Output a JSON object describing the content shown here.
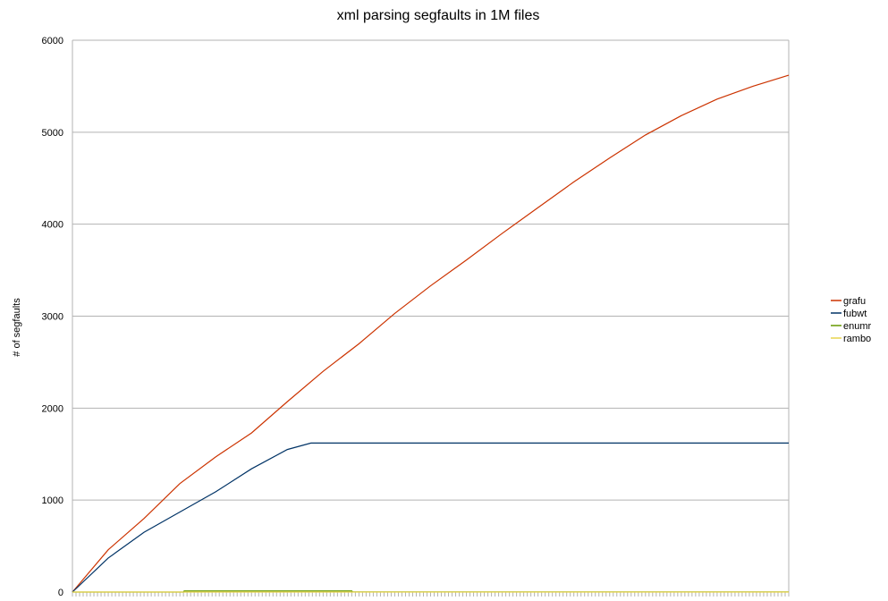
{
  "chart_data": {
    "type": "line",
    "title": "xml parsing segfaults in 1M files",
    "xlabel": "",
    "ylabel": "# of segfaults",
    "ylim": [
      0,
      6000
    ],
    "yticks": [
      0,
      1000,
      2000,
      3000,
      4000,
      5000,
      6000
    ],
    "xlim": [
      0,
      1
    ],
    "grid": "horizontal",
    "legend_position": "right",
    "series": [
      {
        "name": "grafu",
        "color": "#cc3300",
        "x": [
          0,
          0.05,
          0.1,
          0.15,
          0.2,
          0.25,
          0.3,
          0.35,
          0.4,
          0.45,
          0.5,
          0.55,
          0.6,
          0.65,
          0.7,
          0.75,
          0.8,
          0.85,
          0.9,
          0.95,
          1.0
        ],
        "values": [
          0,
          460,
          800,
          1180,
          1470,
          1730,
          2070,
          2400,
          2700,
          3030,
          3330,
          3610,
          3900,
          4180,
          4460,
          4720,
          4970,
          5180,
          5360,
          5500,
          5620
        ]
      },
      {
        "name": "fubwt",
        "color": "#003366",
        "x": [
          0,
          0.05,
          0.1,
          0.15,
          0.2,
          0.25,
          0.3,
          0.333,
          0.5,
          0.75,
          1.0
        ],
        "values": [
          0,
          370,
          650,
          870,
          1090,
          1340,
          1550,
          1620,
          1620,
          1620,
          1620
        ]
      },
      {
        "name": "enumr",
        "color": "#669900",
        "x": [
          0,
          0.155,
          0.156,
          0.39,
          0.391,
          1.0
        ],
        "values": [
          0,
          0,
          12,
          12,
          2,
          2
        ]
      },
      {
        "name": "rambo",
        "color": "#e8d44d",
        "x": [
          0,
          1.0
        ],
        "values": [
          0,
          0
        ]
      }
    ]
  }
}
